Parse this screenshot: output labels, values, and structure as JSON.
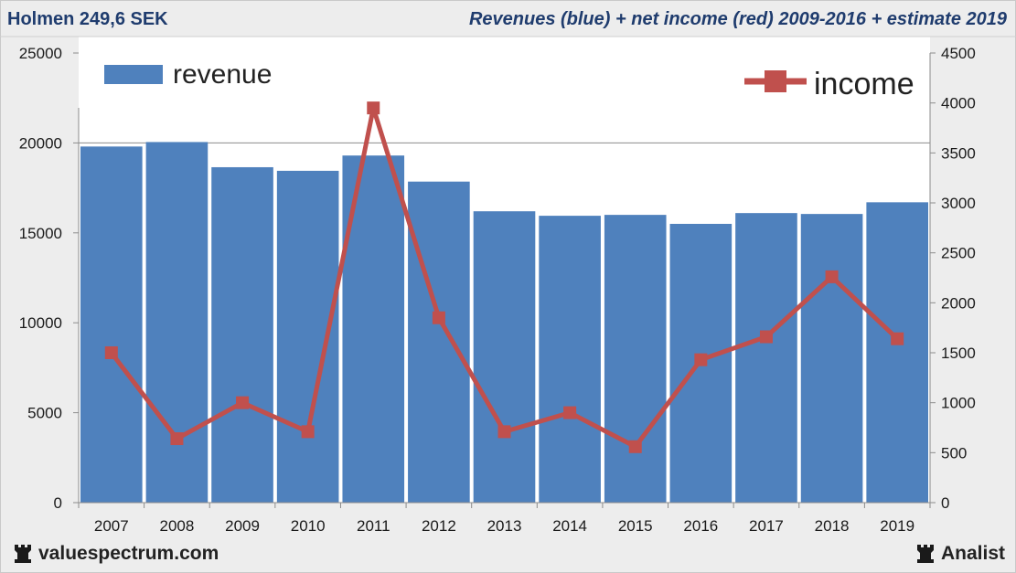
{
  "header": {
    "ticker": "Holmen 249,6 SEK",
    "description": "Revenues (blue) + net income (red) 2009-2016 + estimate 2019"
  },
  "footer": {
    "site": "valuespectrum.com",
    "brand": "Analist",
    "site_icon": "rook-icon",
    "brand_icon": "rook-icon"
  },
  "chart_data": {
    "type": "bar+line",
    "categories": [
      "2007",
      "2008",
      "2009",
      "2010",
      "2011",
      "2012",
      "2013",
      "2014",
      "2015",
      "2016",
      "2017",
      "2018",
      "2019"
    ],
    "series": [
      {
        "name": "revenue",
        "type": "bar",
        "axis": "left",
        "color": "#4f81bd",
        "values": [
          19800,
          20050,
          18650,
          18450,
          19300,
          17850,
          16200,
          15950,
          16000,
          15500,
          16100,
          16050,
          16700
        ]
      },
      {
        "name": "income",
        "type": "line",
        "axis": "right",
        "color": "#c0504d",
        "values": [
          1500,
          640,
          1000,
          710,
          3950,
          1850,
          710,
          900,
          560,
          1430,
          1660,
          2260,
          1640
        ]
      }
    ],
    "left_axis": {
      "min": 0,
      "max": 25000,
      "ticks": [
        0,
        5000,
        10000,
        15000,
        20000,
        25000
      ]
    },
    "right_axis": {
      "min": 0,
      "max": 4500,
      "ticks": [
        0,
        500,
        1000,
        1500,
        2000,
        2500,
        3000,
        3500,
        4000,
        4500
      ]
    },
    "grid": "horizontal-single",
    "legend": "top-left (revenue), top-right (income)"
  }
}
